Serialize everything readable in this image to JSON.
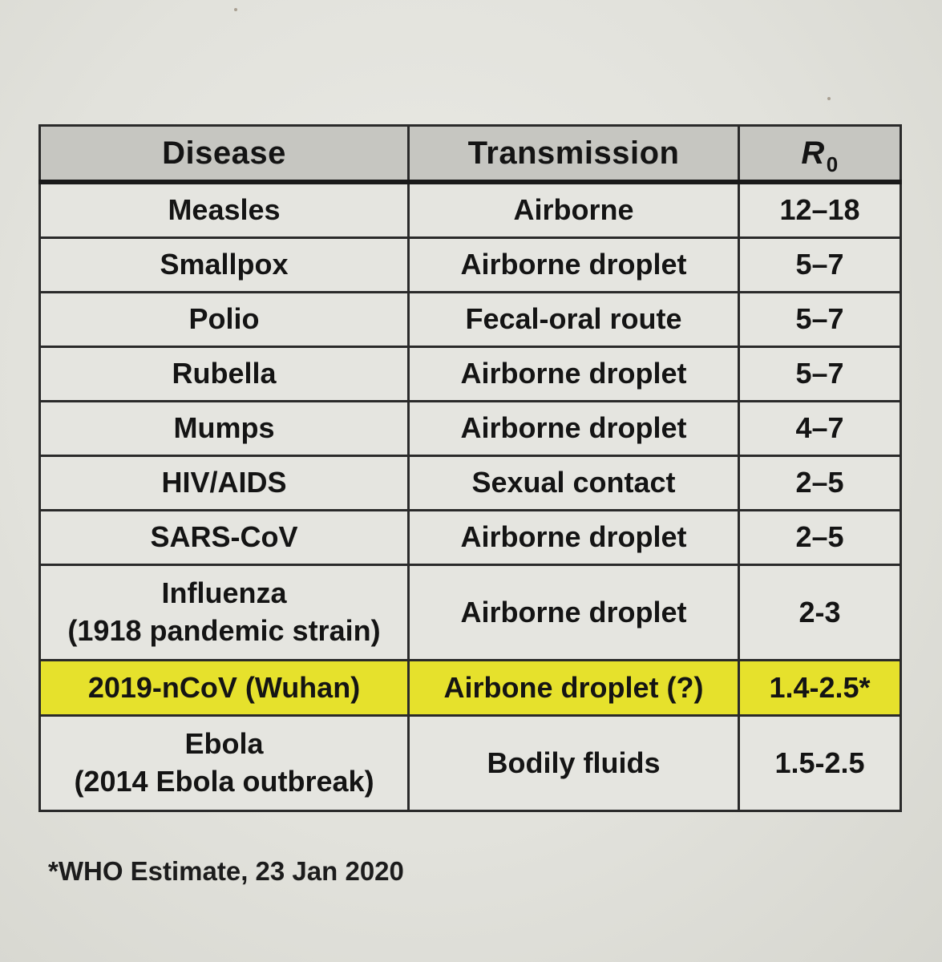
{
  "table": {
    "headers": {
      "disease": "Disease",
      "transmission": "Transmission",
      "r0_symbol": "R",
      "r0_subscript": "0"
    },
    "rows": [
      {
        "disease": "Measles",
        "transmission": "Airborne",
        "r0": "12–18"
      },
      {
        "disease": "Smallpox",
        "transmission": "Airborne droplet",
        "r0": "5–7"
      },
      {
        "disease": "Polio",
        "transmission": "Fecal-oral route",
        "r0": "5–7"
      },
      {
        "disease": "Rubella",
        "transmission": "Airborne droplet",
        "r0": "5–7"
      },
      {
        "disease": "Mumps",
        "transmission": "Airborne droplet",
        "r0": "4–7"
      },
      {
        "disease": "HIV/AIDS",
        "transmission": "Sexual contact",
        "r0": "2–5"
      },
      {
        "disease": "SARS-CoV",
        "transmission": "Airborne droplet",
        "r0": "2–5"
      },
      {
        "disease": "Influenza",
        "disease_note": "(1918 pandemic strain)",
        "transmission": "Airborne droplet",
        "r0": "2-3"
      },
      {
        "disease": "2019-nCoV (Wuhan)",
        "transmission": "Airbone droplet (?)",
        "r0": "1.4-2.5*",
        "highlighted": true
      },
      {
        "disease": "Ebola",
        "disease_note": "(2014 Ebola outbreak)",
        "transmission": "Bodily fluids",
        "r0": "1.5-2.5"
      }
    ],
    "highlight_color": "#e6e12c",
    "header_color": "#c6c6c1"
  },
  "footnote": "*WHO Estimate, 23 Jan 2020"
}
